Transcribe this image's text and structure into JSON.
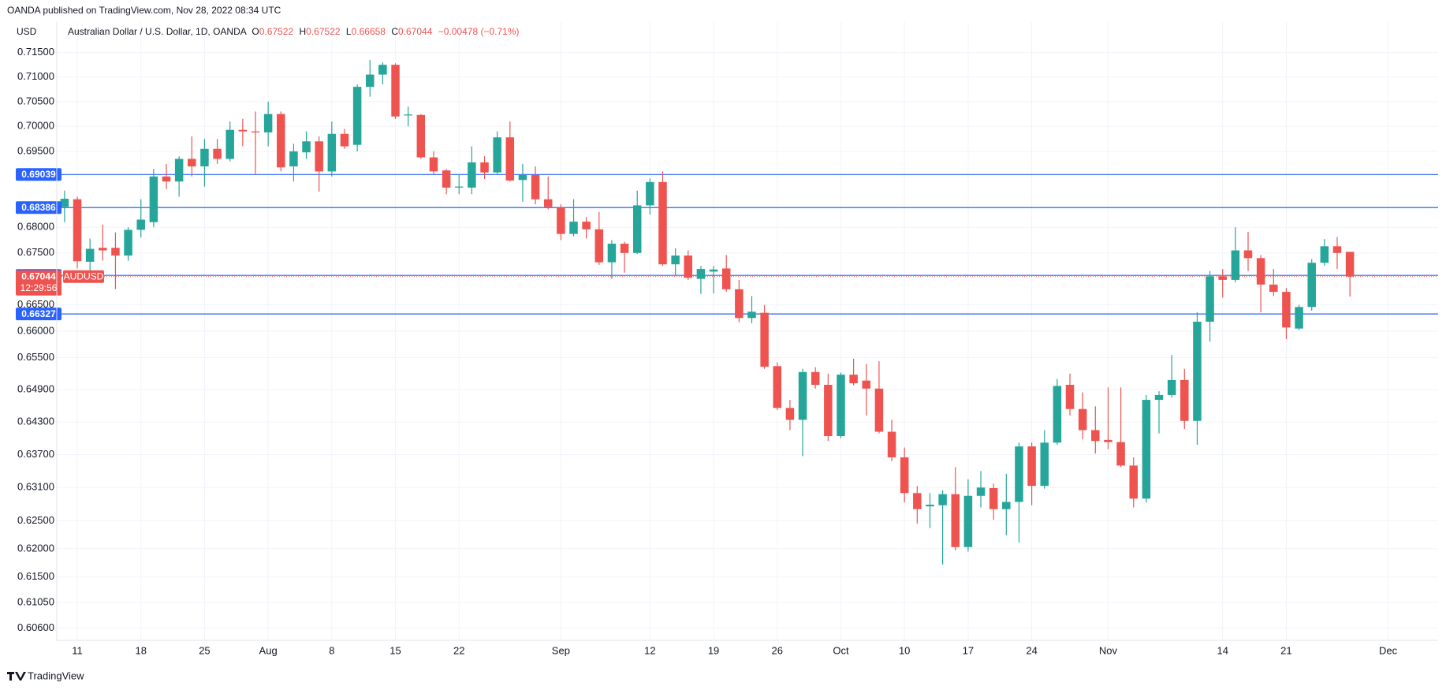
{
  "header": {
    "published": "OANDA published on TradingView.com, Nov 28, 2022 08:34 UTC",
    "currency": "USD",
    "symbol_title": "Australian Dollar / U.S. Dollar, 1D, OANDA",
    "open_label": "O",
    "high_label": "H",
    "low_label": "L",
    "close_label": "C",
    "change": "−0.00478 (−0.71%)",
    "symbol": "AUDUSD",
    "countdown": "12:29:56"
  },
  "footer": {
    "brand": "TradingView"
  },
  "chart_data": {
    "type": "candlestick",
    "log": true,
    "grid": true,
    "up_color": "#26a69a",
    "down_color": "#ef5350",
    "hline_color": "#2962ff",
    "ylim": [
      0.6039,
      0.7213
    ],
    "yticks": [
      {
        "value": 0.715,
        "label": "0.71500"
      },
      {
        "value": 0.71,
        "label": "0.71000"
      },
      {
        "value": 0.705,
        "label": "0.70500"
      },
      {
        "value": 0.7,
        "label": "0.70000"
      },
      {
        "value": 0.695,
        "label": "0.69500"
      },
      {
        "value": 0.68,
        "label": "0.68000"
      },
      {
        "value": 0.675,
        "label": "0.67500"
      },
      {
        "value": 0.665,
        "label": "0.66500"
      },
      {
        "value": 0.66,
        "label": "0.66000"
      },
      {
        "value": 0.655,
        "label": "0.65500"
      },
      {
        "value": 0.649,
        "label": "0.64900"
      },
      {
        "value": 0.643,
        "label": "0.64300"
      },
      {
        "value": 0.637,
        "label": "0.63700"
      },
      {
        "value": 0.631,
        "label": "0.63100"
      },
      {
        "value": 0.625,
        "label": "0.62500"
      },
      {
        "value": 0.62,
        "label": "0.62000"
      },
      {
        "value": 0.615,
        "label": "0.61500"
      },
      {
        "value": 0.6105,
        "label": "0.61050"
      },
      {
        "value": 0.606,
        "label": "0.60600"
      }
    ],
    "hlines": [
      {
        "value": 0.69039
      },
      {
        "value": 0.68386
      },
      {
        "value": 0.67067
      },
      {
        "value": 0.66327
      }
    ],
    "categories": [
      null,
      "11",
      null,
      null,
      null,
      null,
      "18",
      null,
      null,
      null,
      null,
      "25",
      null,
      null,
      null,
      null,
      "Aug",
      null,
      null,
      null,
      null,
      "8",
      null,
      null,
      null,
      null,
      "15",
      null,
      null,
      null,
      null,
      "22",
      null,
      null,
      null,
      null,
      null,
      null,
      null,
      "Sep",
      null,
      null,
      null,
      null,
      null,
      null,
      "12",
      null,
      null,
      null,
      null,
      "19",
      null,
      null,
      null,
      null,
      "26",
      null,
      null,
      null,
      null,
      "Oct",
      null,
      null,
      null,
      null,
      "10",
      null,
      null,
      null,
      null,
      "17",
      null,
      null,
      null,
      null,
      "24",
      null,
      null,
      null,
      null,
      null,
      "Nov",
      null,
      null,
      null,
      null,
      null,
      null,
      null,
      null,
      "14",
      null,
      null,
      null,
      null,
      "21",
      null,
      null,
      null,
      null,
      null,
      null,
      null,
      "Dec"
    ],
    "open": [
      0.684,
      0.6855,
      0.6733,
      0.676,
      0.676,
      0.6745,
      0.6795,
      0.681,
      0.69,
      0.689,
      0.6935,
      0.692,
      0.6955,
      0.6935,
      0.6993,
      0.699,
      0.6988,
      0.7025,
      0.692,
      0.6948,
      0.697,
      0.691,
      0.6985,
      0.6963,
      0.708,
      0.7105,
      0.7125,
      0.7022,
      0.7023,
      0.6938,
      0.6912,
      0.6878,
      0.6878,
      0.6928,
      0.6908,
      0.6978,
      0.6893,
      0.6903,
      0.6855,
      0.6838,
      0.6787,
      0.6811,
      0.6796,
      0.6732,
      0.6768,
      0.675,
      0.6843,
      0.6889,
      0.6728,
      0.6745,
      0.67,
      0.6714,
      0.672,
      0.668,
      0.6625,
      0.6635,
      0.6534,
      0.6456,
      0.6434,
      0.6523,
      0.6499,
      0.6404,
      0.6518,
      0.6507,
      0.6492,
      0.6412,
      0.6365,
      0.63,
      0.6276,
      0.6278,
      0.6298,
      0.6203,
      0.6295,
      0.6309,
      0.6271,
      0.6284,
      0.6385,
      0.6313,
      0.6392,
      0.6499,
      0.6454,
      0.6415,
      0.6397,
      0.6393,
      0.635,
      0.629,
      0.6471,
      0.648,
      0.6508,
      0.6432,
      0.6618,
      0.6705,
      0.6698,
      0.6755,
      0.674,
      0.6689,
      0.6675,
      0.6605,
      0.6646,
      0.6731,
      0.6763,
      0.67522,
      null,
      null,
      null
    ],
    "high": [
      0.6872,
      0.686,
      0.6778,
      0.6805,
      0.679,
      0.68,
      0.6855,
      0.6915,
      0.6925,
      0.694,
      0.698,
      0.6975,
      0.6975,
      0.701,
      0.7015,
      0.703,
      0.705,
      0.703,
      0.6965,
      0.699,
      0.698,
      0.701,
      0.6995,
      0.7085,
      0.7135,
      0.713,
      0.7128,
      0.704,
      0.7025,
      0.695,
      0.6915,
      0.6905,
      0.696,
      0.694,
      0.699,
      0.701,
      0.6925,
      0.692,
      0.69,
      0.6845,
      0.6855,
      0.682,
      0.683,
      0.6775,
      0.6772,
      0.6872,
      0.6896,
      0.691,
      0.6759,
      0.6755,
      0.6725,
      0.6725,
      0.6746,
      0.6698,
      0.6667,
      0.665,
      0.6541,
      0.6471,
      0.6529,
      0.6532,
      0.652,
      0.6522,
      0.6548,
      0.6538,
      0.6543,
      0.6434,
      0.6383,
      0.6313,
      0.63,
      0.6305,
      0.6347,
      0.6325,
      0.634,
      0.6317,
      0.6335,
      0.6392,
      0.6392,
      0.6415,
      0.651,
      0.652,
      0.6485,
      0.6459,
      0.6494,
      0.6494,
      0.6365,
      0.648,
      0.6487,
      0.6555,
      0.6529,
      0.6636,
      0.6715,
      0.6719,
      0.68,
      0.6791,
      0.6746,
      0.6719,
      0.6682,
      0.665,
      0.6738,
      0.6777,
      0.6781,
      0.67522,
      null,
      null,
      null
    ],
    "low": [
      0.681,
      0.672,
      0.6715,
      0.6735,
      0.668,
      0.6735,
      0.678,
      0.68,
      0.6875,
      0.686,
      0.69,
      0.688,
      0.6925,
      0.693,
      0.696,
      0.6905,
      0.696,
      0.691,
      0.689,
      0.6935,
      0.687,
      0.69,
      0.6955,
      0.695,
      0.706,
      0.7085,
      0.7015,
      0.7,
      0.6935,
      0.6905,
      0.6865,
      0.6865,
      0.6865,
      0.6895,
      0.6905,
      0.689,
      0.685,
      0.6845,
      0.6835,
      0.6775,
      0.6782,
      0.6778,
      0.6727,
      0.67,
      0.6712,
      0.6748,
      0.6825,
      0.6725,
      0.6707,
      0.6698,
      0.6671,
      0.6672,
      0.6675,
      0.6617,
      0.6615,
      0.6529,
      0.6452,
      0.6415,
      0.6367,
      0.6492,
      0.6395,
      0.64,
      0.6498,
      0.6442,
      0.6409,
      0.6358,
      0.6283,
      0.6245,
      0.6237,
      0.6172,
      0.6197,
      0.6195,
      0.6274,
      0.6252,
      0.6224,
      0.6211,
      0.6278,
      0.6308,
      0.6388,
      0.6442,
      0.6398,
      0.6372,
      0.638,
      0.6347,
      0.6274,
      0.6283,
      0.6409,
      0.6475,
      0.6417,
      0.6388,
      0.658,
      0.6664,
      0.6693,
      0.6715,
      0.6636,
      0.6667,
      0.6585,
      0.6602,
      0.6639,
      0.6725,
      0.6719,
      0.66658,
      null,
      null,
      null
    ],
    "close": [
      0.6856,
      0.6734,
      0.6758,
      0.6755,
      0.6745,
      0.6795,
      0.6815,
      0.69,
      0.689,
      0.6935,
      0.692,
      0.6955,
      0.6935,
      0.6993,
      0.699,
      0.6988,
      0.7025,
      0.6918,
      0.695,
      0.697,
      0.691,
      0.6985,
      0.696,
      0.708,
      0.7105,
      0.7125,
      0.702,
      0.7024,
      0.6938,
      0.691,
      0.6878,
      0.688,
      0.6928,
      0.6908,
      0.6978,
      0.6892,
      0.6903,
      0.6855,
      0.684,
      0.6787,
      0.6811,
      0.6796,
      0.6732,
      0.6768,
      0.675,
      0.6843,
      0.6889,
      0.6728,
      0.6745,
      0.6702,
      0.6719,
      0.6718,
      0.668,
      0.6625,
      0.6637,
      0.6533,
      0.6456,
      0.6434,
      0.6523,
      0.6499,
      0.6404,
      0.6518,
      0.6502,
      0.6492,
      0.6412,
      0.6365,
      0.63,
      0.6271,
      0.6279,
      0.6298,
      0.6203,
      0.6295,
      0.631,
      0.6271,
      0.6284,
      0.6385,
      0.6313,
      0.6392,
      0.6497,
      0.6454,
      0.6415,
      0.6395,
      0.6393,
      0.635,
      0.629,
      0.6471,
      0.648,
      0.6508,
      0.6432,
      0.6618,
      0.6705,
      0.6698,
      0.6755,
      0.674,
      0.6689,
      0.6675,
      0.6607,
      0.6646,
      0.6731,
      0.6763,
      0.675,
      0.67044,
      null,
      null,
      null
    ]
  }
}
